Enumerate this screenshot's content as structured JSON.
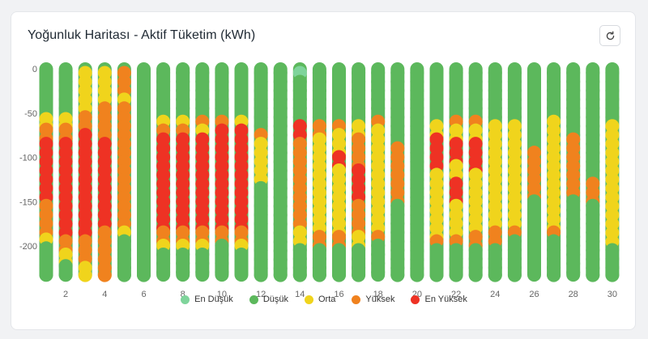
{
  "header": {
    "title": "Yoğunluk Haritası - Aktif Tüketim (kWh)",
    "refresh_icon": "refresh-icon"
  },
  "colors": {
    "en_dusuk": "#7fd49b",
    "dusuk": "#5cb85c",
    "orta": "#f0d41c",
    "yuksek": "#f0821e",
    "en_yuksek": "#ee3224"
  },
  "chart_data": {
    "type": "heatmap",
    "x_ticks": [
      "2",
      "4",
      "6",
      "8",
      "10",
      "12",
      "14",
      "16",
      "18",
      "20",
      "22",
      "24",
      "26",
      "28",
      "30"
    ],
    "y_ticks": [
      "0",
      "-50",
      "-100",
      "-150",
      "-200"
    ],
    "ylim": [
      -230,
      0
    ],
    "xlim": [
      1,
      30
    ],
    "legend": [
      "En Düşük",
      "Düşük",
      "Orta",
      "Yüksek",
      "En Yüksek"
    ],
    "legend_position": "bottom",
    "columns": [
      {
        "day": 1,
        "segments": [
          [
            "d",
            0,
            -50
          ],
          [
            "o",
            -52,
            -64
          ],
          [
            "y",
            -64,
            -80
          ],
          [
            "r",
            -80,
            -150
          ],
          [
            "y",
            -150,
            -188
          ],
          [
            "o",
            -188,
            -198
          ],
          [
            "d",
            -198,
            -233
          ]
        ]
      },
      {
        "day": 2,
        "segments": [
          [
            "d",
            0,
            -50
          ],
          [
            "o",
            -52,
            -64
          ],
          [
            "y",
            -64,
            -80
          ],
          [
            "r",
            -80,
            -190
          ],
          [
            "y",
            -190,
            -205
          ],
          [
            "o",
            -205,
            -218
          ],
          [
            "d",
            -218,
            -233
          ]
        ]
      },
      {
        "day": 3,
        "segments": [
          [
            "o",
            0,
            -50
          ],
          [
            "y",
            -50,
            -70
          ],
          [
            "r",
            -70,
            -190
          ],
          [
            "y",
            -190,
            -220
          ],
          [
            "o",
            -220,
            -233
          ]
        ]
      },
      {
        "day": 4,
        "segments": [
          [
            "o",
            0,
            -40
          ],
          [
            "y",
            -40,
            -80
          ],
          [
            "r",
            -80,
            -180
          ],
          [
            "y",
            -180,
            -233
          ]
        ]
      },
      {
        "day": 5,
        "segments": [
          [
            "y",
            0,
            -30
          ],
          [
            "o",
            -30,
            -40
          ],
          [
            "y",
            -40,
            -180
          ],
          [
            "o",
            -180,
            -190
          ],
          [
            "d",
            -190,
            -233
          ]
        ]
      },
      {
        "day": 6,
        "segments": [
          [
            "d",
            0,
            -233
          ]
        ]
      },
      {
        "day": 7,
        "segments": [
          [
            "d",
            0,
            -55
          ],
          [
            "o",
            -55,
            -65
          ],
          [
            "y",
            -65,
            -75
          ],
          [
            "r",
            -75,
            -180
          ],
          [
            "y",
            -180,
            -195
          ],
          [
            "o",
            -195,
            -205
          ],
          [
            "d",
            -205,
            -233
          ]
        ]
      },
      {
        "day": 8,
        "segments": [
          [
            "d",
            0,
            -55
          ],
          [
            "o",
            -55,
            -65
          ],
          [
            "y",
            -65,
            -75
          ],
          [
            "r",
            -75,
            -180
          ],
          [
            "y",
            -180,
            -195
          ],
          [
            "o",
            -195,
            -205
          ],
          [
            "d",
            -205,
            -233
          ]
        ]
      },
      {
        "day": 9,
        "segments": [
          [
            "d",
            0,
            -55
          ],
          [
            "y",
            -55,
            -65
          ],
          [
            "o",
            -65,
            -75
          ],
          [
            "r",
            -75,
            -180
          ],
          [
            "y",
            -180,
            -195
          ],
          [
            "o",
            -195,
            -205
          ],
          [
            "d",
            -205,
            -233
          ]
        ]
      },
      {
        "day": 10,
        "segments": [
          [
            "d",
            0,
            -55
          ],
          [
            "y",
            -55,
            -65
          ],
          [
            "r",
            -65,
            -180
          ],
          [
            "y",
            -180,
            -195
          ],
          [
            "d",
            -195,
            -233
          ]
        ]
      },
      {
        "day": 11,
        "segments": [
          [
            "d",
            0,
            -55
          ],
          [
            "o",
            -55,
            -65
          ],
          [
            "r",
            -65,
            -180
          ],
          [
            "y",
            -180,
            -195
          ],
          [
            "o",
            -195,
            -205
          ],
          [
            "d",
            -205,
            -233
          ]
        ]
      },
      {
        "day": 12,
        "segments": [
          [
            "d",
            0,
            -70
          ],
          [
            "y",
            -70,
            -80
          ],
          [
            "o",
            -80,
            -130
          ],
          [
            "d",
            -130,
            -233
          ]
        ]
      },
      {
        "day": 13,
        "segments": [
          [
            "d",
            0,
            -233
          ]
        ]
      },
      {
        "day": 14,
        "segments": [
          [
            "l",
            0,
            -10
          ],
          [
            "d",
            -10,
            -60
          ],
          [
            "r",
            -60,
            -80
          ],
          [
            "y",
            -80,
            -180
          ],
          [
            "o",
            -180,
            -200
          ],
          [
            "d",
            -200,
            -233
          ]
        ]
      },
      {
        "day": 15,
        "segments": [
          [
            "d",
            0,
            -60
          ],
          [
            "y",
            -60,
            -75
          ],
          [
            "o",
            -75,
            -185
          ],
          [
            "y",
            -185,
            -200
          ],
          [
            "d",
            -200,
            -233
          ]
        ]
      },
      {
        "day": 16,
        "segments": [
          [
            "d",
            0,
            -60
          ],
          [
            "y",
            -60,
            -70
          ],
          [
            "o",
            -70,
            -95
          ],
          [
            "r",
            -95,
            -110
          ],
          [
            "o",
            -110,
            -185
          ],
          [
            "y",
            -185,
            -200
          ],
          [
            "d",
            -200,
            -233
          ]
        ]
      },
      {
        "day": 17,
        "segments": [
          [
            "d",
            0,
            -60
          ],
          [
            "o",
            -60,
            -75
          ],
          [
            "y",
            -75,
            -110
          ],
          [
            "r",
            -110,
            -150
          ],
          [
            "y",
            -150,
            -185
          ],
          [
            "o",
            -185,
            -200
          ],
          [
            "d",
            -200,
            -233
          ]
        ]
      },
      {
        "day": 18,
        "segments": [
          [
            "d",
            0,
            -55
          ],
          [
            "y",
            -55,
            -65
          ],
          [
            "o",
            -65,
            -185
          ],
          [
            "y",
            -185,
            -195
          ],
          [
            "d",
            -195,
            -233
          ]
        ]
      },
      {
        "day": 19,
        "segments": [
          [
            "d",
            0,
            -85
          ],
          [
            "y",
            -85,
            -150
          ],
          [
            "d",
            -150,
            -233
          ]
        ]
      },
      {
        "day": 20,
        "segments": [
          [
            "d",
            0,
            -233
          ]
        ]
      },
      {
        "day": 21,
        "segments": [
          [
            "d",
            0,
            -60
          ],
          [
            "o",
            -60,
            -75
          ],
          [
            "r",
            -75,
            -115
          ],
          [
            "o",
            -115,
            -190
          ],
          [
            "y",
            -190,
            -200
          ],
          [
            "d",
            -200,
            -233
          ]
        ]
      },
      {
        "day": 22,
        "segments": [
          [
            "d",
            0,
            -55
          ],
          [
            "y",
            -55,
            -65
          ],
          [
            "o",
            -65,
            -80
          ],
          [
            "r",
            -80,
            -105
          ],
          [
            "o",
            -105,
            -125
          ],
          [
            "r",
            -125,
            -150
          ],
          [
            "o",
            -150,
            -190
          ],
          [
            "y",
            -190,
            -200
          ],
          [
            "d",
            -200,
            -233
          ]
        ]
      },
      {
        "day": 23,
        "segments": [
          [
            "d",
            0,
            -55
          ],
          [
            "y",
            -55,
            -65
          ],
          [
            "o",
            -65,
            -80
          ],
          [
            "r",
            -80,
            -115
          ],
          [
            "o",
            -115,
            -185
          ],
          [
            "y",
            -185,
            -200
          ],
          [
            "d",
            -200,
            -233
          ]
        ]
      },
      {
        "day": 24,
        "segments": [
          [
            "d",
            0,
            -60
          ],
          [
            "o",
            -60,
            -180
          ],
          [
            "y",
            -180,
            -200
          ],
          [
            "d",
            -200,
            -233
          ]
        ]
      },
      {
        "day": 25,
        "segments": [
          [
            "d",
            0,
            -60
          ],
          [
            "o",
            -60,
            -180
          ],
          [
            "y",
            -180,
            -190
          ],
          [
            "d",
            -190,
            -233
          ]
        ]
      },
      {
        "day": 26,
        "segments": [
          [
            "d",
            0,
            -90
          ],
          [
            "y",
            -90,
            -145
          ],
          [
            "d",
            -145,
            -233
          ]
        ]
      },
      {
        "day": 27,
        "segments": [
          [
            "d",
            0,
            -55
          ],
          [
            "o",
            -55,
            -180
          ],
          [
            "y",
            -180,
            -190
          ],
          [
            "d",
            -190,
            -233
          ]
        ]
      },
      {
        "day": 28,
        "segments": [
          [
            "d",
            0,
            -75
          ],
          [
            "y",
            -75,
            -145
          ],
          [
            "d",
            -145,
            -233
          ]
        ]
      },
      {
        "day": 29,
        "segments": [
          [
            "d",
            0,
            -125
          ],
          [
            "y",
            -125,
            -150
          ],
          [
            "d",
            -150,
            -233
          ]
        ]
      },
      {
        "day": 30,
        "segments": [
          [
            "d",
            0,
            -60
          ],
          [
            "o",
            -60,
            -200
          ],
          [
            "d",
            -200,
            -233
          ]
        ]
      }
    ]
  }
}
